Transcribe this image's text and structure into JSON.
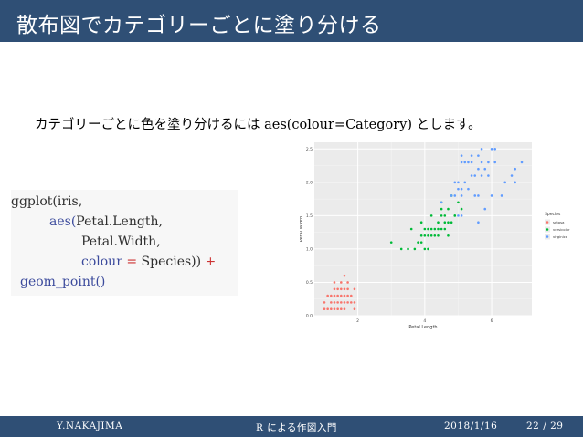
{
  "slide": {
    "title": "散布図でカテゴリーごとに塗り分ける",
    "body_prefix": "カテゴリーごとに色を塗り分けるには ",
    "body_code": "aes(colour=Category)",
    "body_suffix": " とします。"
  },
  "code": {
    "l1_func": "ggplot(",
    "l1_arg": "iris,",
    "l2_func": "aes(",
    "l2_arg": "Petal.Length,",
    "l3_arg": "Petal.Width,",
    "l4_kw": "colour",
    "l4_eq": " = ",
    "l4_arg": "Species))",
    "l4_plus": " +",
    "l5_func": "geom_point()"
  },
  "footer": {
    "author": "Y.NAKAJIMA",
    "center": "R による作図入門",
    "date": "2018/1/16",
    "page": "22 / 29"
  },
  "chart_data": {
    "type": "scatter",
    "xlabel": "Petal.Length",
    "ylabel": "Petal.Width",
    "xlim": [
      0.7,
      7.2
    ],
    "ylim": [
      0.0,
      2.6
    ],
    "x_ticks": [
      2,
      4,
      6
    ],
    "y_ticks": [
      0.0,
      0.5,
      1.0,
      1.5,
      2.0,
      2.5
    ],
    "x_tick_labels": [
      "2",
      "4",
      "6"
    ],
    "y_tick_labels": [
      "0.0",
      "0.5",
      "1.0",
      "1.5",
      "2.0",
      "2.5"
    ],
    "grid": true,
    "legend_title": "Species",
    "legend_position": "right",
    "series": [
      {
        "name": "setosa",
        "color": "#f8766d",
        "points": [
          [
            1.4,
            0.2
          ],
          [
            1.3,
            0.2
          ],
          [
            1.5,
            0.2
          ],
          [
            1.7,
            0.4
          ],
          [
            1.4,
            0.3
          ],
          [
            1.5,
            0.1
          ],
          [
            1.1,
            0.1
          ],
          [
            1.2,
            0.2
          ],
          [
            1.3,
            0.4
          ],
          [
            1.6,
            0.2
          ],
          [
            1.0,
            0.2
          ],
          [
            1.7,
            0.5
          ],
          [
            1.9,
            0.2
          ],
          [
            1.6,
            0.4
          ],
          [
            1.5,
            0.4
          ],
          [
            1.4,
            0.1
          ],
          [
            1.6,
            0.6
          ],
          [
            1.9,
            0.4
          ],
          [
            1.2,
            0.3
          ],
          [
            1.3,
            0.3
          ],
          [
            1.5,
            0.3
          ],
          [
            1.6,
            0.1
          ],
          [
            1.4,
            0.4
          ],
          [
            1.5,
            0.5
          ],
          [
            1.3,
            0.1
          ],
          [
            1.7,
            0.3
          ],
          [
            1.8,
            0.2
          ],
          [
            1.2,
            0.1
          ],
          [
            1.1,
            0.3
          ],
          [
            1.0,
            0.1
          ],
          [
            1.8,
            0.3
          ],
          [
            1.6,
            0.3
          ],
          [
            1.9,
            0.1
          ],
          [
            1.7,
            0.2
          ],
          [
            1.3,
            0.5
          ]
        ]
      },
      {
        "name": "versicolor",
        "color": "#00ba38",
        "points": [
          [
            4.7,
            1.4
          ],
          [
            4.5,
            1.5
          ],
          [
            4.9,
            1.5
          ],
          [
            4.0,
            1.3
          ],
          [
            4.6,
            1.5
          ],
          [
            3.3,
            1.0
          ],
          [
            3.9,
            1.4
          ],
          [
            3.5,
            1.0
          ],
          [
            4.2,
            1.5
          ],
          [
            3.6,
            1.3
          ],
          [
            4.4,
            1.4
          ],
          [
            4.1,
            1.0
          ],
          [
            4.7,
            1.2
          ],
          [
            4.4,
            1.3
          ],
          [
            4.8,
            1.8
          ],
          [
            4.0,
            1.0
          ],
          [
            4.3,
            1.3
          ],
          [
            4.8,
            1.4
          ],
          [
            5.0,
            1.7
          ],
          [
            3.8,
            1.1
          ],
          [
            3.7,
            1.0
          ],
          [
            3.9,
            1.2
          ],
          [
            5.1,
            1.6
          ],
          [
            4.5,
            1.6
          ],
          [
            4.4,
            1.2
          ],
          [
            4.1,
            1.3
          ],
          [
            3.0,
            1.1
          ],
          [
            4.2,
            1.2
          ],
          [
            4.6,
            1.4
          ],
          [
            4.1,
            1.2
          ],
          [
            4.3,
            1.2
          ],
          [
            4.0,
            1.2
          ],
          [
            4.5,
            1.3
          ],
          [
            3.9,
            1.1
          ],
          [
            4.7,
            1.6
          ],
          [
            4.9,
            1.5
          ],
          [
            4.6,
            1.3
          ],
          [
            4.2,
            1.3
          ],
          [
            4.5,
            1.7
          ]
        ]
      },
      {
        "name": "virginica",
        "color": "#619cff",
        "points": [
          [
            6.0,
            2.5
          ],
          [
            5.1,
            1.9
          ],
          [
            5.9,
            2.1
          ],
          [
            5.6,
            1.8
          ],
          [
            5.8,
            2.2
          ],
          [
            6.6,
            2.1
          ],
          [
            4.5,
            1.7
          ],
          [
            6.3,
            1.8
          ],
          [
            6.1,
            2.5
          ],
          [
            5.3,
            1.9
          ],
          [
            5.5,
            2.1
          ],
          [
            5.0,
            2.0
          ],
          [
            5.1,
            2.4
          ],
          [
            5.3,
            2.3
          ],
          [
            6.7,
            2.2
          ],
          [
            6.9,
            2.3
          ],
          [
            5.0,
            1.5
          ],
          [
            5.7,
            2.3
          ],
          [
            4.9,
            2.0
          ],
          [
            6.7,
            2.0
          ],
          [
            4.9,
            1.8
          ],
          [
            5.7,
            2.1
          ],
          [
            6.0,
            1.8
          ],
          [
            4.8,
            1.8
          ],
          [
            5.4,
            2.1
          ],
          [
            5.6,
            2.4
          ],
          [
            5.8,
            1.6
          ],
          [
            6.4,
            2.0
          ],
          [
            5.6,
            2.2
          ],
          [
            5.1,
            1.5
          ],
          [
            5.6,
            1.4
          ],
          [
            6.1,
            2.3
          ],
          [
            5.5,
            1.8
          ],
          [
            5.4,
            2.4
          ],
          [
            5.2,
            2.3
          ],
          [
            5.1,
            2.3
          ],
          [
            5.9,
            2.3
          ],
          [
            5.7,
            2.5
          ],
          [
            5.2,
            2.0
          ],
          [
            5.0,
            1.9
          ],
          [
            5.4,
            2.3
          ],
          [
            5.1,
            1.8
          ]
        ]
      }
    ]
  }
}
